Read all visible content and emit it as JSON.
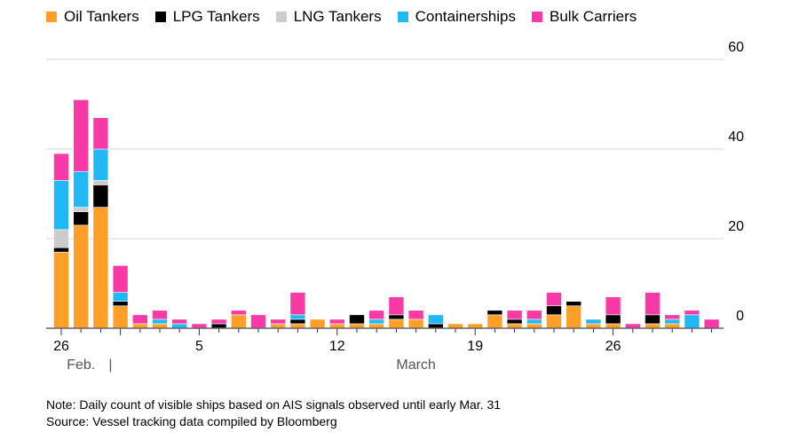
{
  "chart_data": {
    "type": "bar",
    "stacked": true,
    "title": "",
    "xlabel": "",
    "ylabel": "",
    "ylim": [
      0,
      60
    ],
    "yticks": [
      0,
      20,
      40,
      60
    ],
    "grid": true,
    "legend_placement": "top-left",
    "categories": [
      "Feb 26",
      "Feb 27",
      "Feb 28",
      "Mar 1",
      "Mar 2",
      "Mar 3",
      "Mar 4",
      "Mar 5",
      "Mar 6",
      "Mar 7",
      "Mar 8",
      "Mar 9",
      "Mar 10",
      "Mar 11",
      "Mar 12",
      "Mar 13",
      "Mar 14",
      "Mar 15",
      "Mar 16",
      "Mar 17",
      "Mar 18",
      "Mar 19",
      "Mar 20",
      "Mar 21",
      "Mar 22",
      "Mar 23",
      "Mar 24",
      "Mar 25",
      "Mar 26",
      "Mar 27",
      "Mar 28",
      "Mar 29",
      "Mar 30",
      "Mar 31"
    ],
    "xtick_labels": [
      {
        "index": 0,
        "label": "26"
      },
      {
        "index": 7,
        "label": "5"
      },
      {
        "index": 14,
        "label": "12"
      },
      {
        "index": 21,
        "label": "19"
      },
      {
        "index": 28,
        "label": "26"
      }
    ],
    "month_labels": [
      {
        "index": 1,
        "label": "Feb."
      },
      {
        "index": 2.5,
        "label": "|"
      },
      {
        "index": 18,
        "label": "March"
      }
    ],
    "series": [
      {
        "name": "Oil Tankers",
        "color": "#ff9f27",
        "values": [
          17,
          23,
          27,
          5,
          1,
          1,
          0,
          0,
          0,
          3,
          0,
          1,
          1,
          2,
          1,
          1,
          1,
          2,
          2,
          0,
          1,
          1,
          3,
          1,
          1,
          3,
          5,
          1,
          1,
          0,
          1,
          1,
          0,
          0
        ]
      },
      {
        "name": "LPG Tankers",
        "color": "#000000",
        "values": [
          1,
          3,
          5,
          1,
          0,
          0,
          0,
          0,
          1,
          0,
          0,
          0,
          1,
          0,
          0,
          2,
          0,
          1,
          0,
          1,
          0,
          0,
          1,
          1,
          0,
          2,
          1,
          0,
          2,
          0,
          2,
          0,
          0,
          0
        ]
      },
      {
        "name": "LNG Tankers",
        "color": "#cccccc",
        "values": [
          4,
          1,
          1,
          0,
          0,
          0,
          0,
          0,
          0,
          0,
          0,
          0,
          0,
          0,
          0,
          0,
          0,
          0,
          0,
          0,
          0,
          0,
          0,
          0,
          0,
          0,
          0,
          0,
          0,
          0,
          0,
          0,
          0,
          0
        ]
      },
      {
        "name": "Containerships",
        "color": "#21b9f5",
        "values": [
          11,
          8,
          7,
          2,
          0,
          1,
          1,
          0,
          0,
          0,
          0,
          0,
          1,
          0,
          0,
          0,
          1,
          0,
          0,
          2,
          0,
          0,
          0,
          0,
          1,
          0,
          0,
          1,
          0,
          0,
          0,
          1,
          3,
          0
        ]
      },
      {
        "name": "Bulk Carriers",
        "color": "#f73aa6",
        "values": [
          6,
          16,
          7,
          6,
          2,
          2,
          1,
          1,
          1,
          1,
          3,
          1,
          5,
          0,
          1,
          0,
          2,
          4,
          2,
          0,
          0,
          0,
          0,
          2,
          2,
          3,
          0,
          0,
          4,
          1,
          5,
          1,
          1,
          2
        ]
      }
    ]
  },
  "note": "Note: Daily count of visible ships based on AIS signals observed until early Mar. 31",
  "source": "Source: Vessel tracking data compiled by Bloomberg"
}
